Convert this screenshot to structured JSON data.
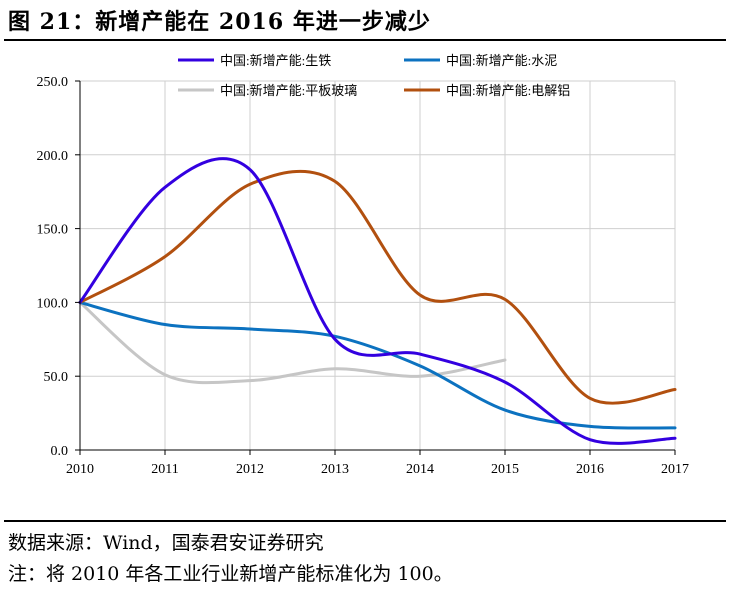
{
  "figure": {
    "title": "图 21：新增产能在 2016 年进一步减少",
    "source": "数据来源：Wind，国泰君安证券研究",
    "note": "注：将 2010 年各工业行业新增产能标准化为 100。"
  },
  "chart_data": {
    "type": "line",
    "title": "",
    "xlabel": "",
    "ylabel": "",
    "x": [
      2010,
      2011,
      2012,
      2013,
      2014,
      2015,
      2016,
      2017
    ],
    "ylim": [
      0,
      250
    ],
    "yticks": [
      0,
      50,
      100,
      150,
      200,
      250
    ],
    "ytick_labels": [
      "0.0",
      "50.0",
      "100.0",
      "150.0",
      "200.0",
      "250.0"
    ],
    "grid": true,
    "legend_position": "top",
    "series": [
      {
        "name": "中国:新增产能:生铁",
        "color": "#3300e0",
        "values": [
          100,
          178,
          190,
          75,
          65,
          46,
          7,
          8
        ]
      },
      {
        "name": "中国:新增产能:水泥",
        "color": "#0c72c0",
        "values": [
          100,
          85,
          82,
          77,
          57,
          27,
          16,
          15
        ]
      },
      {
        "name": "中国:新增产能:平板玻璃",
        "color": "#c6c6c6",
        "values": [
          100,
          51,
          47,
          55,
          50,
          61,
          null,
          null
        ]
      },
      {
        "name": "中国:新增产能:电解铝",
        "color": "#b2500f",
        "values": [
          100,
          131,
          180,
          182,
          105,
          102,
          35,
          41
        ]
      }
    ]
  }
}
